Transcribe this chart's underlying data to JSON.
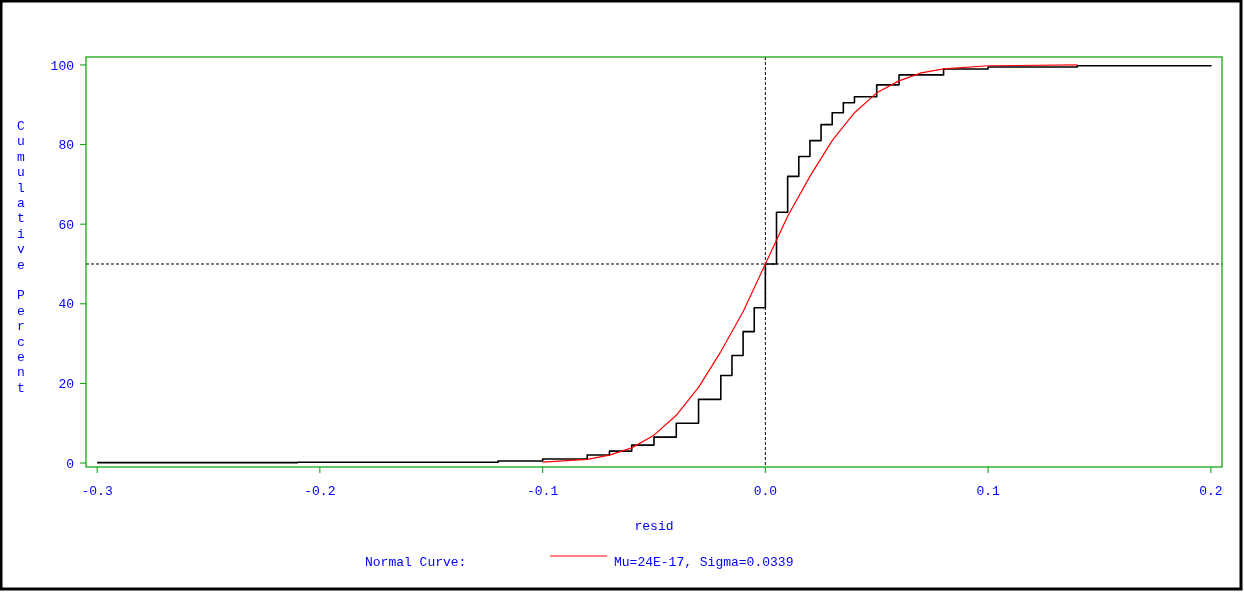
{
  "chart_data": {
    "type": "step",
    "xlabel": "resid",
    "ylabel": "Cumulative Percent",
    "legend_title": "Normal Curve:",
    "legend": "bottom",
    "grid": false,
    "xlim": [
      -0.305,
      0.205
    ],
    "xticks": [
      {
        "value": -0.3,
        "label": "-0.3"
      },
      {
        "value": -0.2,
        "label": "-0.2"
      },
      {
        "value": -0.1,
        "label": "-0.1"
      },
      {
        "value": 0,
        "label": "0.0"
      },
      {
        "value": 0.1,
        "label": "0.1"
      },
      {
        "value": 0.2,
        "label": "0.2"
      }
    ],
    "ylim": [
      -1,
      102
    ],
    "yticks": [
      0,
      20,
      40,
      60,
      80,
      100
    ],
    "ref_lines": [
      {
        "axis": "x",
        "value": 0,
        "color": "#000000",
        "line_style": "dashed"
      },
      {
        "axis": "y",
        "value": 50,
        "color": "#000000",
        "line_style": "dashed"
      }
    ],
    "series": [
      {
        "color": "#000000",
        "x": [
          -0.3,
          -0.21,
          -0.12,
          -0.1,
          -0.08,
          -0.07,
          -0.06,
          -0.05,
          -0.04,
          -0.03,
          -0.02,
          -0.015,
          -0.01,
          -0.005,
          0,
          0.005,
          0.01,
          0.015,
          0.02,
          0.025,
          0.03,
          0.035,
          0.04,
          0.05,
          0.06,
          0.08,
          0.1,
          0.14,
          0.2
        ],
        "values": [
          0.1,
          0.2,
          0.5,
          1,
          2,
          3,
          4.5,
          6.5,
          10,
          16,
          22,
          27,
          33,
          39,
          50,
          63,
          72,
          77,
          81,
          85,
          88,
          90.5,
          92,
          95,
          97.5,
          99,
          99.5,
          99.8,
          100
        ]
      },
      {
        "type": "line",
        "name": "Mu=24E-17, Sigma=0.0339",
        "color": "#ff0000",
        "x": [
          -0.1,
          -0.08,
          -0.07,
          -0.06,
          -0.05,
          -0.04,
          -0.03,
          -0.02,
          -0.01,
          0,
          0.01,
          0.02,
          0.03,
          0.04,
          0.05,
          0.06,
          0.07,
          0.08,
          0.1,
          0.14
        ],
        "values": [
          0.2,
          0.9,
          2,
          3.8,
          7,
          12,
          19,
          28,
          38,
          50,
          62,
          72,
          81,
          88,
          93,
          96,
          98,
          99,
          99.8,
          100
        ]
      }
    ]
  }
}
